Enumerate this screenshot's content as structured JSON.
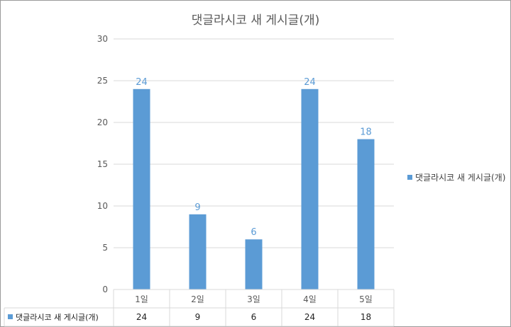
{
  "chart_data": {
    "type": "bar",
    "title": "댓글라시코 새 게시글(개)",
    "categories": [
      "1일",
      "2일",
      "3일",
      "4일",
      "5일"
    ],
    "series": [
      {
        "name": "댓글라시코 새 게시글(개)",
        "values": [
          24,
          9,
          6,
          24,
          18
        ]
      }
    ],
    "ylim": [
      0,
      30
    ],
    "yticks": [
      0,
      5,
      10,
      15,
      20,
      25,
      30
    ],
    "grid": true,
    "legend": "right",
    "data_table": true,
    "colors": {
      "bar": "#5b9bd5",
      "grid": "#d9d9d9",
      "text": "#595959",
      "frame": "#9a9a9a"
    }
  }
}
